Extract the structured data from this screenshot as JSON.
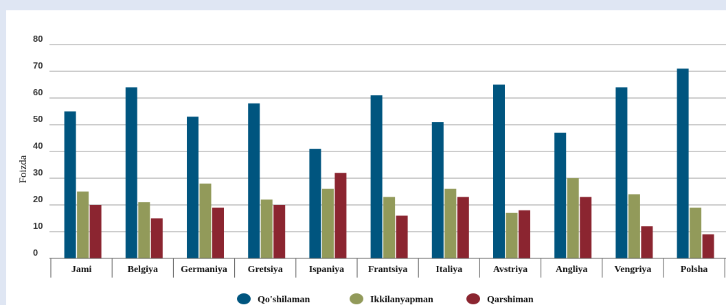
{
  "chart_data": {
    "type": "bar",
    "ylabel": "Foizda",
    "xlabel": "",
    "ylim": [
      0,
      80
    ],
    "yticks": [
      0,
      10,
      20,
      30,
      40,
      50,
      60,
      70,
      80
    ],
    "grid": true,
    "legend_position": "bottom",
    "categories": [
      "Jami",
      "Belgiya",
      "Germaniya",
      "Gretsiya",
      "Ispaniya",
      "Frantsiya",
      "Italiya",
      "Avstriya",
      "Angliya",
      "Vengriya",
      "Polsha"
    ],
    "series": [
      {
        "name": "Qo'shilaman",
        "color": "#00557f",
        "values": [
          55,
          64,
          53,
          58,
          41,
          61,
          51,
          65,
          47,
          64,
          71
        ]
      },
      {
        "name": "Ikkilanyapman",
        "color": "#929a5a",
        "values": [
          25,
          21,
          28,
          22,
          26,
          23,
          26,
          17,
          30,
          24,
          19
        ]
      },
      {
        "name": "Qarshiman",
        "color": "#8b2530",
        "values": [
          20,
          15,
          19,
          20,
          32,
          16,
          23,
          18,
          23,
          12,
          9
        ]
      }
    ]
  }
}
